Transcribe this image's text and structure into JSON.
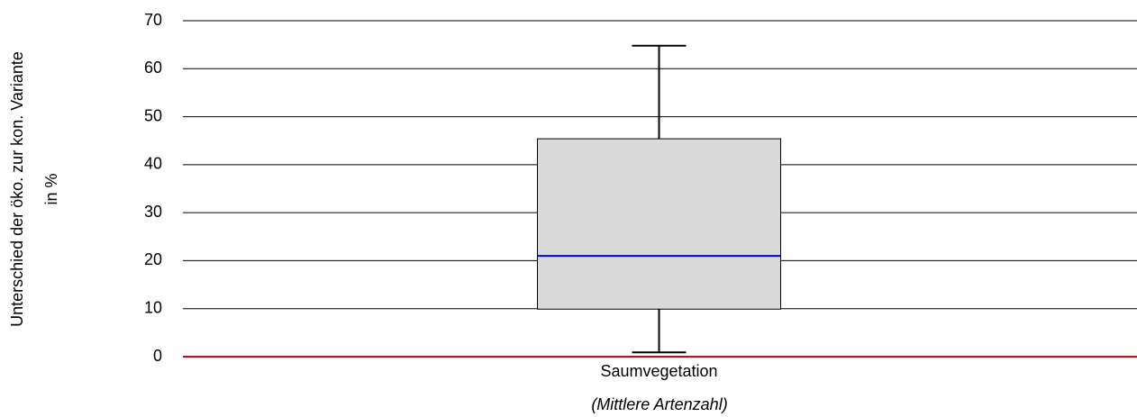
{
  "chart_data": {
    "type": "box",
    "y_label": [
      "Unterschied der öko. zur kon. Variante",
      "in %"
    ],
    "x_label": "(Mittlere Artenzahl)",
    "categories": [
      "Saumvegetation"
    ],
    "boxes": [
      {
        "min": 0.9,
        "q1": 9.9,
        "median": 21,
        "q3": 45.4,
        "max": 64.8
      }
    ],
    "box_color": "#d9d9d9",
    "median_color": "#0000ff",
    "zero_line_color": "#e00000",
    "ylim": [
      0,
      70
    ],
    "yticks": [
      0,
      10,
      20,
      30,
      40,
      50,
      60,
      70
    ],
    "grid": true
  }
}
